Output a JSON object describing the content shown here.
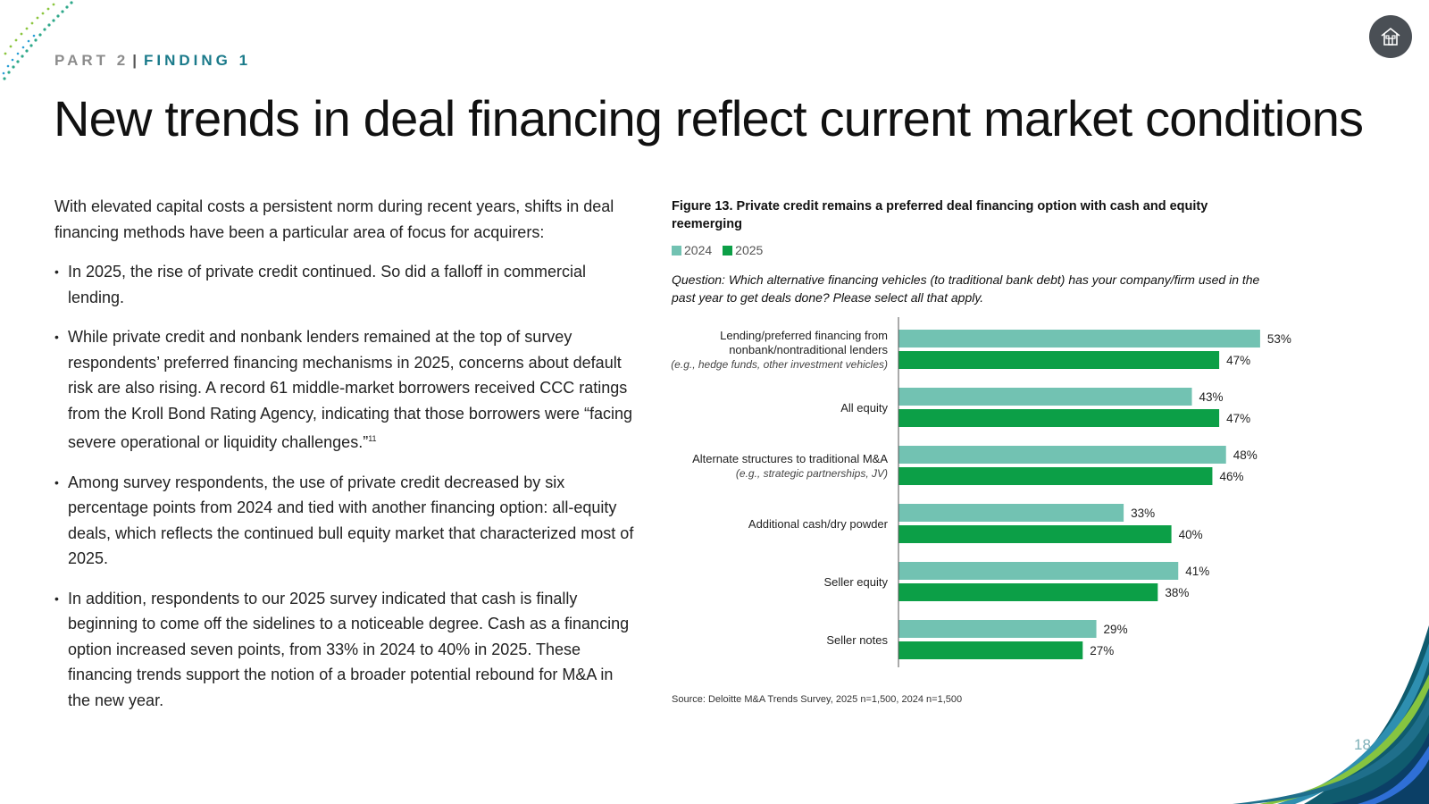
{
  "header": {
    "part": "PART 2",
    "separator": "|",
    "finding": "FINDING 1"
  },
  "title": "New trends in deal financing reflect current market conditions",
  "home_button": {
    "icon": "home-icon"
  },
  "body": {
    "intro": "With elevated capital costs a persistent norm during recent years, shifts in deal financing methods have been a particular area of focus for acquirers:",
    "bullets": [
      "In 2025, the rise of private credit continued. So did a falloff in commercial lending.",
      "While private credit and nonbank lenders remained at the top of survey respondents’ preferred financing mechanisms in 2025, concerns about default risk are also rising. A record 61 middle-market borrowers received CCC ratings from the Kroll Bond Rating Agency, indicating that those borrowers were “facing severe operational or liquidity challenges.”",
      "Among survey respondents, the use of private credit decreased by six percentage points from 2024 and tied with another financing option: all-equity deals, which reflects the continued bull equity market that characterized most of 2025.",
      "In addition, respondents to our 2025 survey indicated that cash is finally beginning to come off the sidelines to a noticeable degree. Cash as a financing option increased seven points, from 33% in 2024 to 40% in 2025. These financing trends support the notion of a broader potential rebound for M&A in the new year."
    ],
    "footnote_ref": "11"
  },
  "figure": {
    "title": "Figure 13. Private credit remains a preferred deal financing option with cash and equity reemerging",
    "question": "Question: Which alternative financing vehicles (to traditional bank debt) has your company/firm used in the past year to get deals done? Please select all that apply.",
    "source": "Source: Deloitte M&A Trends Survey, 2025 n=1,500, 2024 n=1,500"
  },
  "chart_data": {
    "type": "bar",
    "orientation": "horizontal",
    "categories": [
      "Lending/preferred financing from nonbank/nontraditional lenders",
      "All equity",
      "Alternate structures to traditional M&A",
      "Additional cash/dry powder",
      "Seller equity",
      "Seller notes"
    ],
    "category_lines": [
      [
        "Lending/preferred financing from",
        "nonbank/nontraditional lenders"
      ],
      [
        "All equity"
      ],
      [
        "Alternate structures to traditional M&A"
      ],
      [
        "Additional cash/dry powder"
      ],
      [
        "Seller equity"
      ],
      [
        "Seller notes"
      ]
    ],
    "category_notes": [
      "(e.g., hedge funds, other investment vehicles)",
      "",
      "(e.g., strategic partnerships, JV)",
      "",
      "",
      ""
    ],
    "series": [
      {
        "name": "2024",
        "color": "#72c2b2",
        "values": [
          53,
          43,
          48,
          33,
          41,
          29
        ]
      },
      {
        "name": "2025",
        "color": "#0c9f47",
        "values": [
          47,
          47,
          46,
          40,
          38,
          27
        ]
      }
    ],
    "value_suffix": "%",
    "xlim": [
      0,
      60
    ],
    "legend_position": "top-left",
    "grid": false
  },
  "page_number": "18"
}
